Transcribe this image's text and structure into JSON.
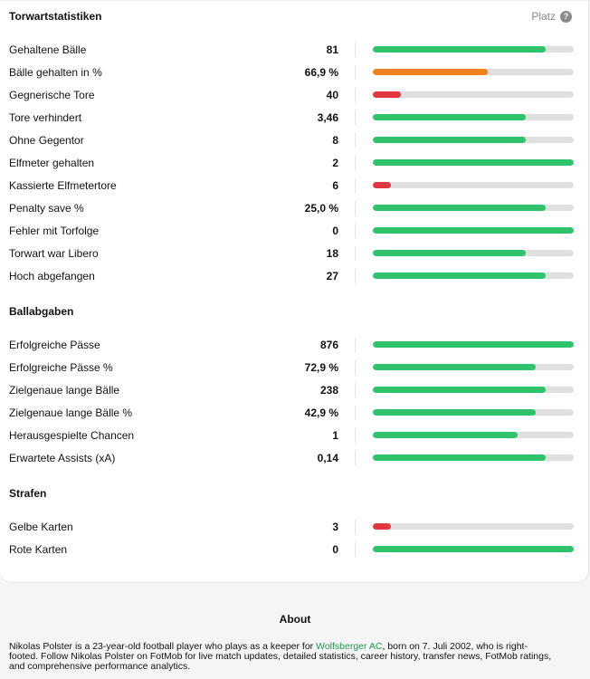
{
  "header": {
    "platz_label": "Platz",
    "help_glyph": "?"
  },
  "sections": [
    {
      "title": "Torwartstatistiken",
      "rows": [
        {
          "label": "Gehaltene Bälle",
          "value": "81",
          "fill": 0.86,
          "color": "#2fc46b"
        },
        {
          "label": "Bälle gehalten in %",
          "value": "66,9 %",
          "fill": 0.57,
          "color": "#f0821e"
        },
        {
          "label": "Gegnerische Tore",
          "value": "40",
          "fill": 0.14,
          "color": "#e0383e"
        },
        {
          "label": "Tore verhindert",
          "value": "3,46",
          "fill": 0.76,
          "color": "#2fc46b"
        },
        {
          "label": "Ohne Gegentor",
          "value": "8",
          "fill": 0.76,
          "color": "#2fc46b"
        },
        {
          "label": "Elfmeter gehalten",
          "value": "2",
          "fill": 1.0,
          "color": "#2fc46b"
        },
        {
          "label": "Kassierte Elfmetertore",
          "value": "6",
          "fill": 0.09,
          "color": "#e0383e"
        },
        {
          "label": "Penalty save %",
          "value": "25,0 %",
          "fill": 0.86,
          "color": "#2fc46b"
        },
        {
          "label": "Fehler mit Torfolge",
          "value": "0",
          "fill": 1.0,
          "color": "#2fc46b"
        },
        {
          "label": "Torwart war Libero",
          "value": "18",
          "fill": 0.76,
          "color": "#2fc46b"
        },
        {
          "label": "Hoch abgefangen",
          "value": "27",
          "fill": 0.86,
          "color": "#2fc46b"
        }
      ]
    },
    {
      "title": "Ballabgaben",
      "rows": [
        {
          "label": "Erfolgreiche Pässe",
          "value": "876",
          "fill": 1.0,
          "color": "#2fc46b"
        },
        {
          "label": "Erfolgreiche Pässe %",
          "value": "72,9 %",
          "fill": 0.81,
          "color": "#2fc46b"
        },
        {
          "label": "Zielgenaue lange Bälle",
          "value": "238",
          "fill": 0.86,
          "color": "#2fc46b"
        },
        {
          "label": "Zielgenaue lange Bälle %",
          "value": "42,9 %",
          "fill": 0.81,
          "color": "#2fc46b"
        },
        {
          "label": "Herausgespielte Chancen",
          "value": "1",
          "fill": 0.72,
          "color": "#2fc46b"
        },
        {
          "label": "Erwartete Assists (xA)",
          "value": "0,14",
          "fill": 0.86,
          "color": "#2fc46b"
        }
      ]
    },
    {
      "title": "Strafen",
      "rows": [
        {
          "label": "Gelbe Karten",
          "value": "3",
          "fill": 0.09,
          "color": "#e0383e"
        },
        {
          "label": "Rote Karten",
          "value": "0",
          "fill": 1.0,
          "color": "#2fc46b"
        }
      ]
    }
  ],
  "about": {
    "title": "About",
    "text_before_link": "Nikolas Polster is a 23-year-old football player who plays as a keeper for ",
    "link_text": "Wolfsberger AC",
    "text_after_link": ", born on 7. Juli 2002, who is right-footed. Follow Nikolas Polster on FotMob for live match updates, detailed statistics, career history, transfer news, FotMob ratings, and comprehensive performance analytics."
  }
}
